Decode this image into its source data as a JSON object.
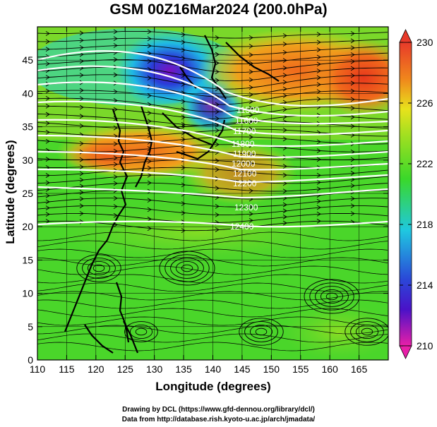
{
  "title": "GSM 00Z16Mar2024 (200.0hPa)",
  "x_axis": {
    "label": "Longitude (degrees)",
    "ticks": [
      "110",
      "115",
      "120",
      "125",
      "130",
      "135",
      "140",
      "145",
      "150",
      "155",
      "160",
      "165"
    ]
  },
  "y_axis": {
    "label": "Latitude  (degrees)",
    "ticks": [
      "0",
      "5",
      "10",
      "15",
      "20",
      "25",
      "30",
      "35",
      "40",
      "45"
    ]
  },
  "colorbar": {
    "ticks": [
      "210",
      "214",
      "218",
      "222",
      "226",
      "230"
    ],
    "range": [
      210,
      230
    ],
    "colors": [
      "#e81fa8",
      "#2a1ccc",
      "#1fb7e8",
      "#3ad82a",
      "#e8e21c",
      "#f0861c",
      "#e83a2a"
    ]
  },
  "contour_labels": [
    "11500",
    "11600",
    "11700",
    "11800",
    "11900",
    "12000",
    "12100",
    "12200",
    "12300",
    "12400"
  ],
  "credits": [
    "Drawing by DCL (https://www.gfd-dennou.org/library/dcl/)",
    "Data from http://database.rish.kyoto-u.ac.jp/arch/jmadata/"
  ]
}
